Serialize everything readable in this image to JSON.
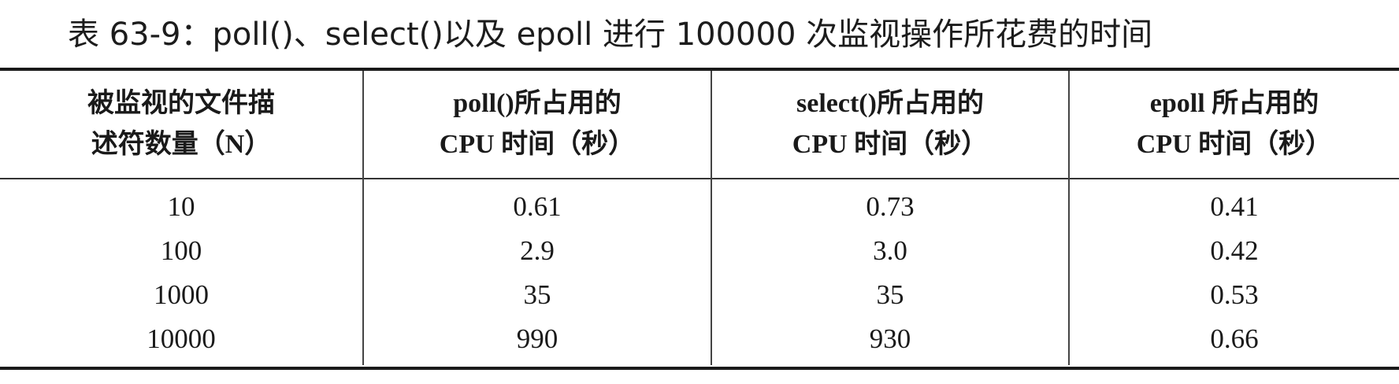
{
  "caption": "表 63-9：poll()、select()以及 epoll 进行 100000 次监视操作所花费的时间",
  "table": {
    "headers": [
      {
        "line1": "被监视的文件描",
        "line2": "述符数量（N）"
      },
      {
        "line1": "poll()所占用的",
        "line2": "CPU 时间（秒）"
      },
      {
        "line1": "select()所占用的",
        "line2": "CPU 时间（秒）"
      },
      {
        "line1": "epoll 所占用的",
        "line2": "CPU 时间（秒）"
      }
    ],
    "rows": [
      [
        "10",
        "0.61",
        "0.73",
        "0.41"
      ],
      [
        "100",
        "2.9",
        "3.0",
        "0.42"
      ],
      [
        "1000",
        "35",
        "35",
        "0.53"
      ],
      [
        "10000",
        "990",
        "930",
        "0.66"
      ]
    ]
  }
}
